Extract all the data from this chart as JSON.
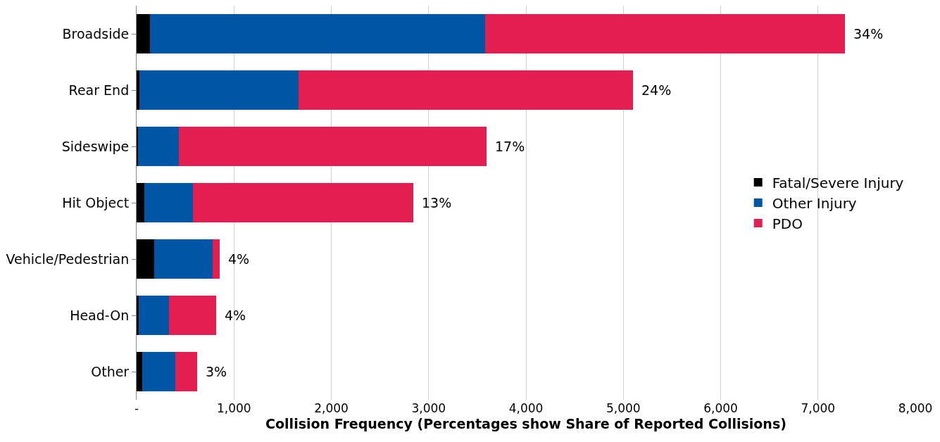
{
  "chart_data": {
    "type": "bar",
    "orientation": "horizontal",
    "stacked": true,
    "xlabel": "Collision Frequency (Percentages show Share of Reported Collisions)",
    "categories": [
      "Broadside",
      "Rear End",
      "Sideswipe",
      "Hit Object",
      "Vehicle/Pedestrian",
      "Head-On",
      "Other"
    ],
    "series": [
      {
        "name": "Fatal/Severe Injury",
        "color": "#000000",
        "values": [
          135,
          30,
          15,
          80,
          180,
          20,
          60
        ]
      },
      {
        "name": "Other Injury",
        "color": "#0055a5",
        "values": [
          3445,
          1630,
          420,
          500,
          600,
          315,
          335
        ]
      },
      {
        "name": "PDO",
        "color": "#e31e50",
        "values": [
          3700,
          3440,
          3160,
          2265,
          75,
          485,
          230
        ]
      }
    ],
    "annotations": [
      {
        "text": "34%",
        "x": 7280,
        "y": "Broadside"
      },
      {
        "text": "24%",
        "x": 5100,
        "y": "Rear End"
      },
      {
        "text": "17%",
        "x": 3595,
        "y": "Sideswipe"
      },
      {
        "text": "13%",
        "x": 2845,
        "y": "Hit Object"
      },
      {
        "text": "4%",
        "x": 855,
        "y": "Vehicle/Pedestrian"
      },
      {
        "text": "4%",
        "x": 820,
        "y": "Head-On"
      },
      {
        "text": "3%",
        "x": 625,
        "y": "Other"
      }
    ],
    "xlim": [
      0,
      8000
    ],
    "xticks": [
      {
        "value": 0,
        "label": "-"
      },
      {
        "value": 1000,
        "label": "1,000"
      },
      {
        "value": 2000,
        "label": "2,000"
      },
      {
        "value": 3000,
        "label": "3,000"
      },
      {
        "value": 4000,
        "label": "4,000"
      },
      {
        "value": 5000,
        "label": "5,000"
      },
      {
        "value": 6000,
        "label": "6,000"
      },
      {
        "value": 7000,
        "label": "7,000"
      },
      {
        "value": 8000,
        "label": "8,000"
      }
    ],
    "grid": "x",
    "legend": "right"
  }
}
